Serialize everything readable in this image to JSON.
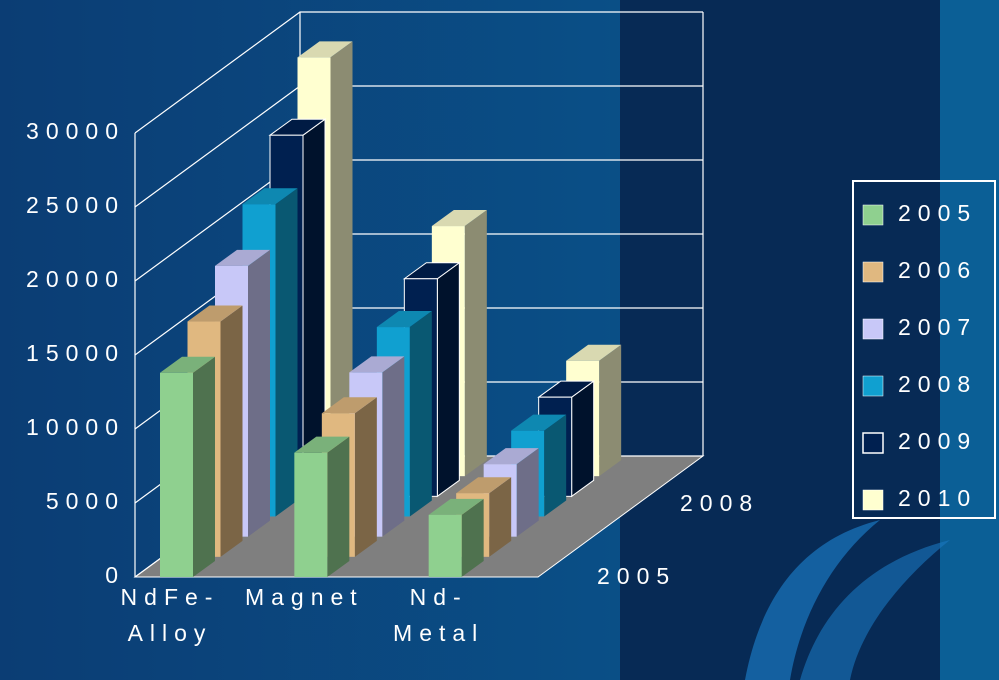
{
  "chart_data": {
    "type": "bar3d",
    "categories": [
      "NdFe-Alloy",
      "Magnet",
      "Nd-Metal"
    ],
    "series": [
      {
        "name": "2005",
        "color": "#8fd08f",
        "values": [
          13800,
          8400,
          4200
        ]
      },
      {
        "name": "2006",
        "color": "#e0b880",
        "values": [
          15900,
          9700,
          4300
        ]
      },
      {
        "name": "2007",
        "color": "#c8c8f8",
        "values": [
          18300,
          11100,
          4900
        ]
      },
      {
        "name": "2008",
        "color": "#10a0d0",
        "values": [
          21100,
          12800,
          5800
        ]
      },
      {
        "name": "2009",
        "color": "#002050",
        "values": [
          24400,
          14700,
          6700
        ]
      },
      {
        "name": "2010",
        "color": "#ffffd0",
        "values": [
          28300,
          16900,
          7800
        ]
      }
    ],
    "ylim": [
      0,
      30000
    ],
    "yticks": [
      0,
      5000,
      10000,
      15000,
      20000,
      25000,
      30000
    ],
    "grid": true
  }
}
